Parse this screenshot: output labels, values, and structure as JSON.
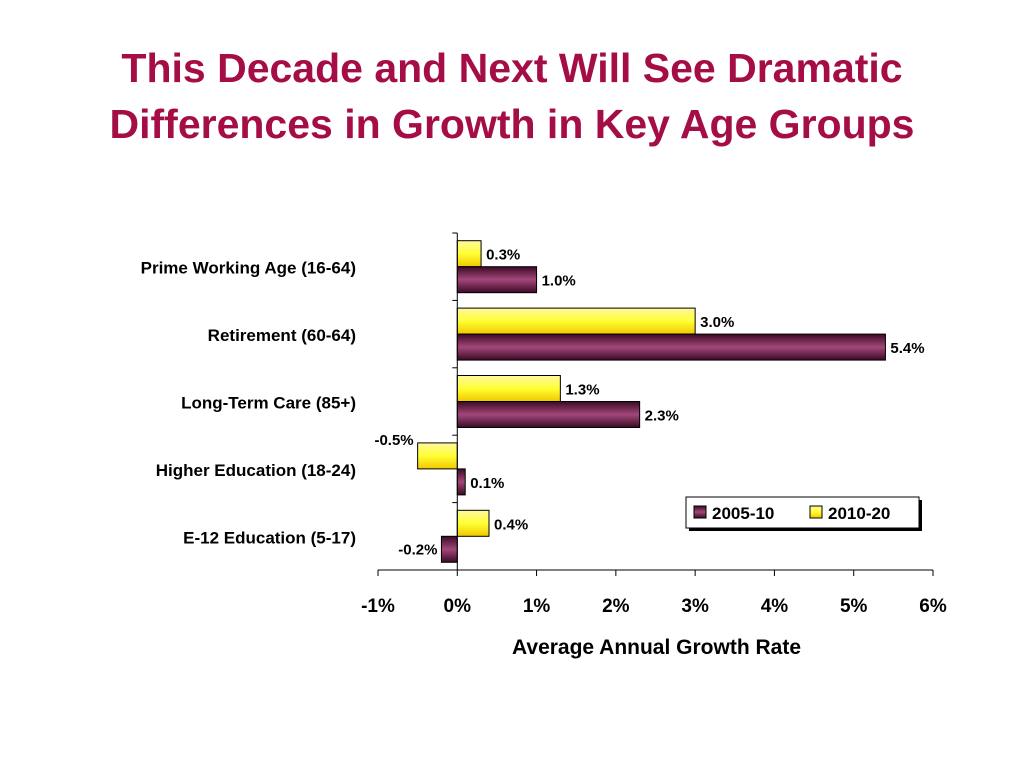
{
  "slide": {
    "title_line1": "This Decade and Next Will See Dramatic",
    "title_line2": "Differences in Growth in Key Age Groups"
  },
  "chart_data": {
    "type": "bar",
    "orientation": "horizontal",
    "categories": [
      "Prime Working Age (16-64)",
      "Retirement (60-64)",
      "Long-Term Care (85+)",
      "Higher Education (18-24)",
      "E-12 Education (5-17)"
    ],
    "series": [
      {
        "name": "2005-10",
        "color": "#5a1a3c",
        "values": [
          1.0,
          5.4,
          2.3,
          0.1,
          -0.2
        ],
        "labels": [
          "1.0%",
          "5.4%",
          "2.3%",
          "0.1%",
          "-0.2%"
        ]
      },
      {
        "name": "2010-20",
        "color": "#ffff33",
        "values": [
          0.3,
          3.0,
          1.3,
          -0.5,
          0.4
        ],
        "labels": [
          "0.3%",
          "3.0%",
          "1.3%",
          "-0.5%",
          "0.4%"
        ]
      }
    ],
    "xlabel": "Average Annual Growth Rate",
    "xlim": [
      -1,
      6
    ],
    "xticks": [
      -1,
      0,
      1,
      2,
      3,
      4,
      5,
      6
    ],
    "xtick_labels": [
      "-1%",
      "0%",
      "1%",
      "2%",
      "3%",
      "4%",
      "5%",
      "6%"
    ],
    "grid": false,
    "legend_position": "bottom-right"
  }
}
